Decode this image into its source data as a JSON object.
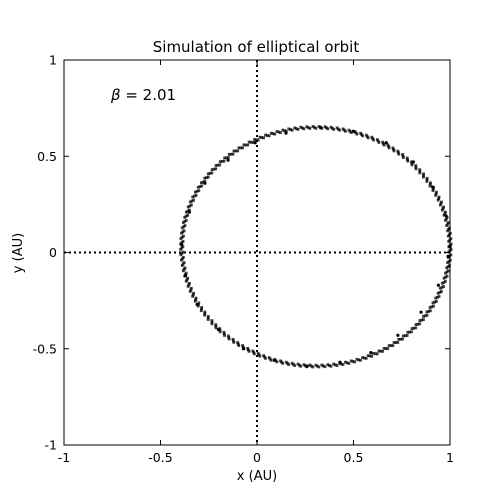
{
  "chart_data": {
    "type": "scatter",
    "title": "Simulation of elliptical orbit",
    "xlabel": "x (AU)",
    "ylabel": "y (AU)",
    "xlim": [
      -1,
      1
    ],
    "ylim": [
      -1,
      1
    ],
    "xticks": [
      -1,
      -0.5,
      0,
      0.5,
      1
    ],
    "yticks": [
      -1,
      -0.5,
      0,
      0.5,
      1
    ],
    "xtick_labels": [
      "-1",
      "-0.5",
      "0",
      "0.5",
      "1"
    ],
    "ytick_labels": [
      "-1",
      "-0.5",
      "0",
      "0.5",
      "1"
    ],
    "grid": false,
    "reference_lines": {
      "x0": true,
      "y0": true,
      "style": "dotted"
    },
    "annotation": {
      "symbol": "β",
      "text": " = 2.01",
      "position": "top-left"
    },
    "series": [
      {
        "marker_color": "#000000",
        "orbit": {
          "x_min": -0.39,
          "x_max": 1.0,
          "y_min": -0.59,
          "y_max": 0.65,
          "center_x": 0.305,
          "center_y": 0.03,
          "semi_axis_x": 0.695,
          "semi_axis_y": 0.62
        },
        "x": [
          1.0,
          0.98,
          0.91,
          0.81,
          0.67,
          0.5,
          0.33,
          0.15,
          -0.01,
          -0.15,
          -0.27,
          -0.35,
          -0.39,
          -0.37,
          -0.31,
          -0.2,
          -0.07,
          0.09,
          0.26,
          0.43,
          0.59,
          0.73,
          0.85,
          0.94,
          0.99,
          1.0
        ],
        "y": [
          0.03,
          0.19,
          0.34,
          0.47,
          0.57,
          0.63,
          0.65,
          0.62,
          0.57,
          0.48,
          0.36,
          0.21,
          0.04,
          -0.12,
          -0.27,
          -0.4,
          -0.5,
          -0.56,
          -0.59,
          -0.57,
          -0.52,
          -0.43,
          -0.31,
          -0.17,
          -0.02,
          0.03
        ]
      }
    ]
  }
}
